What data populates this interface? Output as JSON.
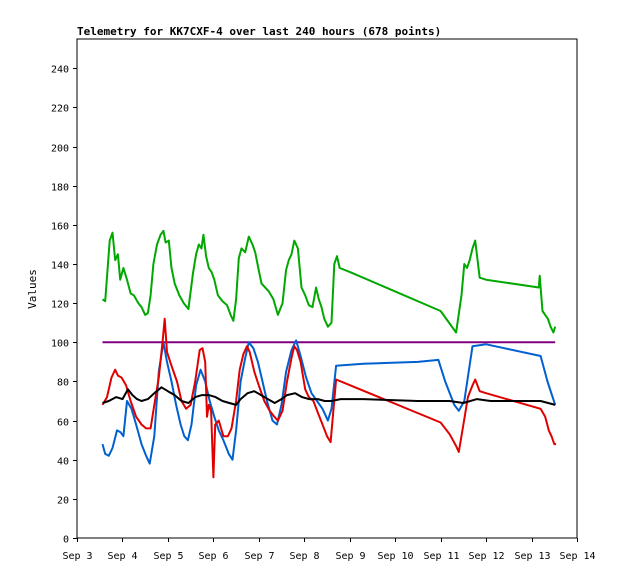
{
  "chart_data": {
    "type": "line",
    "title": "Telemetry for KK7CXF-4 over last 240 hours (678 points)",
    "xlabel": "",
    "ylabel": "Values",
    "x_ticks": [
      "Sep 3",
      "Sep 4",
      "Sep 5",
      "Sep 6",
      "Sep 7",
      "Sep 8",
      "Sep 9",
      "Sep 10",
      "Sep 11",
      "Sep 12",
      "Sep 13",
      "Sep 14"
    ],
    "x_tick_days": [
      3,
      4,
      5,
      6,
      7,
      8,
      9,
      10,
      11,
      12,
      13,
      14
    ],
    "xlim": [
      3,
      14
    ],
    "y_ticks": [
      0,
      20,
      40,
      60,
      80,
      100,
      120,
      140,
      160,
      180,
      200,
      220,
      240
    ],
    "ylim": [
      0,
      255
    ],
    "grid": false,
    "series": [
      {
        "color": "#00a800",
        "points": [
          [
            3.56,
            122
          ],
          [
            3.62,
            121
          ],
          [
            3.72,
            152
          ],
          [
            3.78,
            156
          ],
          [
            3.84,
            142
          ],
          [
            3.9,
            145
          ],
          [
            3.95,
            132
          ],
          [
            4.02,
            138
          ],
          [
            4.1,
            132
          ],
          [
            4.18,
            125
          ],
          [
            4.25,
            124
          ],
          [
            4.35,
            120
          ],
          [
            4.42,
            118
          ],
          [
            4.5,
            114
          ],
          [
            4.56,
            115
          ],
          [
            4.62,
            124
          ],
          [
            4.68,
            140
          ],
          [
            4.76,
            150
          ],
          [
            4.84,
            155
          ],
          [
            4.9,
            157
          ],
          [
            4.95,
            151
          ],
          [
            5.02,
            152
          ],
          [
            5.08,
            138
          ],
          [
            5.15,
            130
          ],
          [
            5.25,
            124
          ],
          [
            5.35,
            120
          ],
          [
            5.45,
            117
          ],
          [
            5.55,
            135
          ],
          [
            5.62,
            145
          ],
          [
            5.68,
            150
          ],
          [
            5.74,
            148
          ],
          [
            5.78,
            155
          ],
          [
            5.84,
            144
          ],
          [
            5.9,
            138
          ],
          [
            5.96,
            136
          ],
          [
            6.02,
            132
          ],
          [
            6.1,
            124
          ],
          [
            6.2,
            121
          ],
          [
            6.3,
            119
          ],
          [
            6.38,
            114
          ],
          [
            6.44,
            111
          ],
          [
            6.5,
            122
          ],
          [
            6.56,
            143
          ],
          [
            6.62,
            148
          ],
          [
            6.7,
            146
          ],
          [
            6.78,
            154
          ],
          [
            6.86,
            150
          ],
          [
            6.92,
            146
          ],
          [
            6.98,
            139
          ],
          [
            7.06,
            130
          ],
          [
            7.14,
            128
          ],
          [
            7.22,
            126
          ],
          [
            7.32,
            122
          ],
          [
            7.42,
            114
          ],
          [
            7.52,
            120
          ],
          [
            7.6,
            137
          ],
          [
            7.66,
            142
          ],
          [
            7.72,
            145
          ],
          [
            7.78,
            152
          ],
          [
            7.86,
            148
          ],
          [
            7.94,
            128
          ],
          [
            8.02,
            124
          ],
          [
            8.1,
            119
          ],
          [
            8.18,
            118
          ],
          [
            8.26,
            128
          ],
          [
            8.32,
            122
          ],
          [
            8.38,
            118
          ],
          [
            8.44,
            112
          ],
          [
            8.52,
            108
          ],
          [
            8.6,
            110
          ],
          [
            8.66,
            140
          ],
          [
            8.72,
            144
          ],
          [
            8.78,
            138
          ],
          [
            9.0,
            136
          ],
          [
            11.0,
            116
          ],
          [
            11.34,
            105
          ],
          [
            11.46,
            124
          ],
          [
            11.52,
            140
          ],
          [
            11.58,
            138
          ],
          [
            11.64,
            142
          ],
          [
            11.7,
            148
          ],
          [
            11.76,
            152
          ],
          [
            11.86,
            133
          ],
          [
            12.0,
            132
          ],
          [
            13.16,
            128
          ],
          [
            13.18,
            134
          ],
          [
            13.24,
            116
          ],
          [
            13.3,
            114
          ],
          [
            13.36,
            112
          ],
          [
            13.42,
            108
          ],
          [
            13.48,
            105
          ],
          [
            13.52,
            108
          ]
        ]
      },
      {
        "color": "#800080",
        "points": [
          [
            3.56,
            100
          ],
          [
            13.52,
            100
          ]
        ]
      },
      {
        "color": "#0060d0",
        "points": [
          [
            3.56,
            48
          ],
          [
            3.62,
            43
          ],
          [
            3.7,
            42
          ],
          [
            3.78,
            46
          ],
          [
            3.88,
            55
          ],
          [
            3.96,
            54
          ],
          [
            4.02,
            52
          ],
          [
            4.1,
            70
          ],
          [
            4.2,
            66
          ],
          [
            4.3,
            58
          ],
          [
            4.42,
            48
          ],
          [
            4.52,
            42
          ],
          [
            4.6,
            38
          ],
          [
            4.7,
            52
          ],
          [
            4.8,
            85
          ],
          [
            4.9,
            100
          ],
          [
            4.98,
            90
          ],
          [
            5.08,
            80
          ],
          [
            5.18,
            68
          ],
          [
            5.28,
            58
          ],
          [
            5.36,
            52
          ],
          [
            5.44,
            50
          ],
          [
            5.52,
            58
          ],
          [
            5.62,
            78
          ],
          [
            5.72,
            86
          ],
          [
            5.82,
            80
          ],
          [
            5.92,
            70
          ],
          [
            6.02,
            62
          ],
          [
            6.12,
            55
          ],
          [
            6.22,
            50
          ],
          [
            6.34,
            43
          ],
          [
            6.42,
            40
          ],
          [
            6.5,
            55
          ],
          [
            6.6,
            80
          ],
          [
            6.7,
            92
          ],
          [
            6.78,
            100
          ],
          [
            6.88,
            97
          ],
          [
            6.98,
            90
          ],
          [
            7.08,
            80
          ],
          [
            7.18,
            70
          ],
          [
            7.3,
            60
          ],
          [
            7.4,
            58
          ],
          [
            7.5,
            68
          ],
          [
            7.6,
            85
          ],
          [
            7.72,
            96
          ],
          [
            7.82,
            101
          ],
          [
            7.92,
            93
          ],
          [
            8.04,
            82
          ],
          [
            8.16,
            74
          ],
          [
            8.28,
            70
          ],
          [
            8.4,
            66
          ],
          [
            8.52,
            60
          ],
          [
            8.6,
            66
          ],
          [
            8.7,
            88
          ],
          [
            9.3,
            89
          ],
          [
            10.5,
            90
          ],
          [
            10.95,
            91
          ],
          [
            11.1,
            80
          ],
          [
            11.3,
            68
          ],
          [
            11.4,
            65
          ],
          [
            11.52,
            70
          ],
          [
            11.7,
            98
          ],
          [
            12.0,
            99
          ],
          [
            12.4,
            97
          ],
          [
            13.2,
            93
          ],
          [
            13.35,
            80
          ],
          [
            13.52,
            68
          ]
        ]
      },
      {
        "color": "#e00000",
        "points": [
          [
            3.56,
            68
          ],
          [
            3.66,
            72
          ],
          [
            3.76,
            82
          ],
          [
            3.84,
            86
          ],
          [
            3.9,
            83
          ],
          [
            3.98,
            82
          ],
          [
            4.08,
            78
          ],
          [
            4.18,
            70
          ],
          [
            4.3,
            62
          ],
          [
            4.42,
            58
          ],
          [
            4.52,
            56
          ],
          [
            4.62,
            56
          ],
          [
            4.7,
            68
          ],
          [
            4.8,
            82
          ],
          [
            4.88,
            100
          ],
          [
            4.93,
            112
          ],
          [
            4.98,
            95
          ],
          [
            5.08,
            88
          ],
          [
            5.2,
            80
          ],
          [
            5.3,
            70
          ],
          [
            5.4,
            66
          ],
          [
            5.5,
            68
          ],
          [
            5.6,
            80
          ],
          [
            5.7,
            96
          ],
          [
            5.76,
            97
          ],
          [
            5.82,
            90
          ],
          [
            5.86,
            62
          ],
          [
            5.9,
            68
          ],
          [
            5.95,
            65
          ],
          [
            6.0,
            31
          ],
          [
            6.04,
            58
          ],
          [
            6.12,
            60
          ],
          [
            6.22,
            52
          ],
          [
            6.32,
            52
          ],
          [
            6.4,
            56
          ],
          [
            6.5,
            70
          ],
          [
            6.58,
            86
          ],
          [
            6.66,
            94
          ],
          [
            6.74,
            98
          ],
          [
            6.8,
            95
          ],
          [
            6.9,
            85
          ],
          [
            7.0,
            78
          ],
          [
            7.12,
            70
          ],
          [
            7.24,
            65
          ],
          [
            7.34,
            62
          ],
          [
            7.42,
            60
          ],
          [
            7.52,
            65
          ],
          [
            7.62,
            80
          ],
          [
            7.72,
            92
          ],
          [
            7.78,
            98
          ],
          [
            7.84,
            96
          ],
          [
            7.92,
            90
          ],
          [
            8.02,
            76
          ],
          [
            8.1,
            72
          ],
          [
            8.2,
            70
          ],
          [
            8.3,
            64
          ],
          [
            8.4,
            58
          ],
          [
            8.5,
            52
          ],
          [
            8.58,
            49
          ],
          [
            8.7,
            81
          ],
          [
            11.0,
            59
          ],
          [
            11.2,
            53
          ],
          [
            11.34,
            47
          ],
          [
            11.4,
            44
          ],
          [
            11.5,
            58
          ],
          [
            11.6,
            72
          ],
          [
            11.7,
            78
          ],
          [
            11.76,
            81
          ],
          [
            11.86,
            75
          ],
          [
            12.0,
            74
          ],
          [
            13.2,
            66
          ],
          [
            13.3,
            62
          ],
          [
            13.38,
            55
          ],
          [
            13.44,
            52
          ],
          [
            13.5,
            48
          ],
          [
            13.54,
            48
          ]
        ]
      },
      {
        "color": "#000000",
        "points": [
          [
            3.56,
            69
          ],
          [
            3.7,
            70
          ],
          [
            3.86,
            72
          ],
          [
            4.0,
            71
          ],
          [
            4.12,
            76
          ],
          [
            4.22,
            73
          ],
          [
            4.32,
            71
          ],
          [
            4.42,
            70
          ],
          [
            4.56,
            71
          ],
          [
            4.7,
            74
          ],
          [
            4.86,
            77
          ],
          [
            5.0,
            75
          ],
          [
            5.15,
            73
          ],
          [
            5.3,
            70
          ],
          [
            5.45,
            69
          ],
          [
            5.6,
            72
          ],
          [
            5.75,
            73
          ],
          [
            5.9,
            73
          ],
          [
            6.05,
            72
          ],
          [
            6.2,
            70
          ],
          [
            6.35,
            69
          ],
          [
            6.5,
            68
          ],
          [
            6.6,
            71
          ],
          [
            6.75,
            74
          ],
          [
            6.9,
            75
          ],
          [
            7.05,
            73
          ],
          [
            7.2,
            71
          ],
          [
            7.35,
            69
          ],
          [
            7.5,
            71
          ],
          [
            7.62,
            73
          ],
          [
            7.8,
            74
          ],
          [
            7.95,
            72
          ],
          [
            8.1,
            71
          ],
          [
            8.3,
            71
          ],
          [
            8.45,
            70
          ],
          [
            8.6,
            70
          ],
          [
            8.8,
            71
          ],
          [
            9.3,
            71
          ],
          [
            10.5,
            70
          ],
          [
            11.2,
            70
          ],
          [
            11.5,
            69
          ],
          [
            11.8,
            71
          ],
          [
            12.1,
            70
          ],
          [
            12.6,
            70
          ],
          [
            13.2,
            70
          ],
          [
            13.52,
            68
          ]
        ]
      }
    ]
  }
}
